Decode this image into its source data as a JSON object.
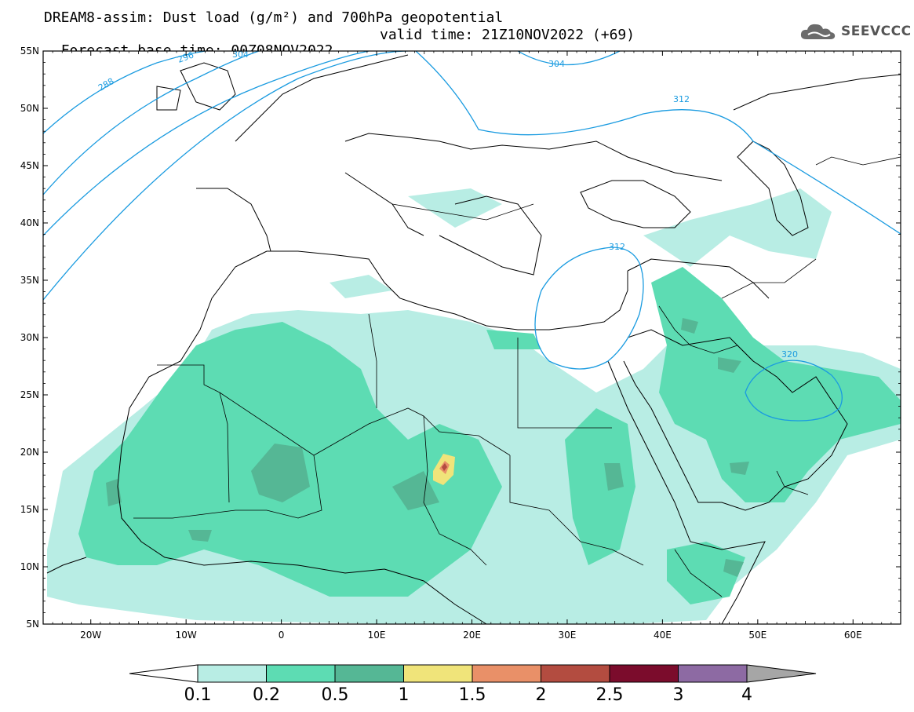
{
  "title": {
    "line1": "DREAM8-assim: Dust load (g/m²) and 700hPa geopotential",
    "line2_base": "Forecast base time: 00Z08NOV2022",
    "line2_valid": "valid time: 21Z10NOV2022 (+69)"
  },
  "logo": {
    "text": "SEEVCCC",
    "icon": "cloud-icon"
  },
  "map": {
    "lon_range": [
      -25,
      65
    ],
    "lat_range": [
      5,
      55
    ],
    "lat_ticks": [
      "55N",
      "50N",
      "45N",
      "40N",
      "35N",
      "30N",
      "25N",
      "20N",
      "15N",
      "10N",
      "5N"
    ],
    "lon_ticks": [
      "20W",
      "10W",
      "0",
      "10E",
      "20E",
      "30E",
      "40E",
      "50E",
      "60E"
    ],
    "contour_labels": [
      "288",
      "296",
      "304",
      "304",
      "312",
      "312",
      "320"
    ],
    "contour_color": "#1a9be0"
  },
  "colorbar": {
    "ticks": [
      "0.1",
      "0.2",
      "0.5",
      "1",
      "1.5",
      "2",
      "2.5",
      "3",
      "4"
    ],
    "colors": [
      "#b8ede4",
      "#5ddcb3",
      "#55b795",
      "#f0e47a",
      "#e99068",
      "#b34c40",
      "#7b0c2c",
      "#8d6aa3"
    ],
    "under_color": "#ffffff",
    "over_color": "#a6a6a6"
  }
}
